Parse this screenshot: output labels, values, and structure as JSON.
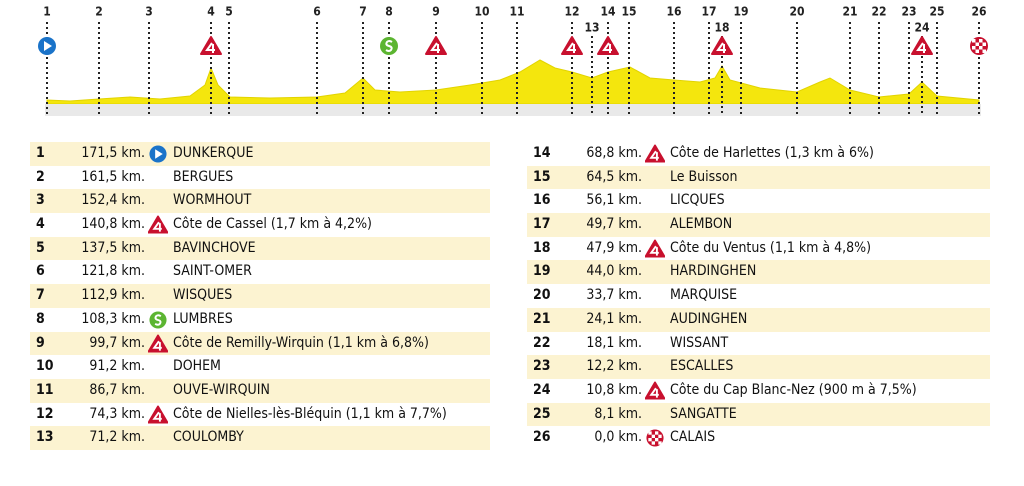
{
  "table": {
    "rows": [
      [
        "1",
        "171,5 km.",
        "DUNKERQUE"
      ],
      [
        "2",
        "161,5 km.",
        "BERGUES"
      ],
      [
        "3",
        "152,4 km.",
        "WORMHOUT"
      ],
      [
        "4",
        "140,8 km.",
        "Côte de Cassel (1,7 km à 4,2%)"
      ],
      [
        "5",
        "137,5 km.",
        "BAVINCHOVE"
      ],
      [
        "6",
        "121,8 km.",
        "SAINT-OMER"
      ],
      [
        "7",
        "112,9 km.",
        "WISQUES"
      ],
      [
        "8",
        "108,3 km.",
        "LUMBRES"
      ],
      [
        "9",
        "99,7 km.",
        "Côte de Remilly-Wirquin (1,1 km à 6,8%)"
      ],
      [
        "10",
        "91,2 km.",
        "DOHEM"
      ],
      [
        "11",
        "86,7 km.",
        "OUVE-WIRQUIN"
      ],
      [
        "12",
        "74,3 km.",
        "Côte de Nielles-lès-Bléquin (1,1 km à 7,7%)"
      ],
      [
        "13",
        "71,2 km.",
        "COULOMBY"
      ],
      [
        "14",
        "68,8 km.",
        "Côte de Harlettes (1,3 km à 6%)"
      ],
      [
        "15",
        "64,5 km.",
        "Le Buisson"
      ],
      [
        "16",
        "56,1 km.",
        "LICQUES"
      ],
      [
        "17",
        "49,7 km.",
        "ALEMBON"
      ],
      [
        "18",
        "47,9 km.",
        "Côte du Ventus (1,1 km à 4,8%)"
      ],
      [
        "19",
        "44,0 km.",
        "HARDINGHEN"
      ],
      [
        "20",
        "33,7 km.",
        "MARQUISE"
      ],
      [
        "21",
        "24,1 km.",
        "AUDINGHEN"
      ],
      [
        "22",
        "18,1 km.",
        "WISSANT"
      ],
      [
        "23",
        "12,2 km.",
        "ESCALLES"
      ],
      [
        "24",
        "10,8 km.",
        "Côte du Cap Blanc-Nez (900 m à 7,5%)"
      ],
      [
        "25",
        "8,1 km.",
        "SANGATTE"
      ],
      [
        "26",
        "0,0 km.",
        "CALAIS"
      ]
    ]
  }
}
